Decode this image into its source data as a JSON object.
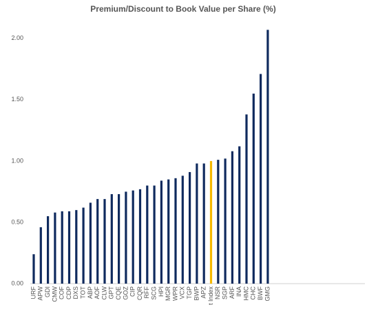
{
  "chart_data": {
    "type": "bar",
    "title": "Premium/Discount to Book Value per Share (%)",
    "categories": [
      "URF",
      "APW",
      "GDI",
      "CMW",
      "COF",
      "CDP",
      "DXS",
      "TOT",
      "ABP",
      "AOF",
      "CLW",
      "GPT",
      "CQE",
      "GOZ",
      "CIP",
      "CQR",
      "RFF",
      "SCG",
      "HPI",
      "MGR",
      "WPR",
      "VCX",
      "TGP",
      "BWP",
      "APZ",
      "t Index",
      "NSR",
      "SGP",
      "ARF",
      "INA",
      "HMC",
      "CHC",
      "BWF",
      "GMG"
    ],
    "values": [
      0.24,
      0.46,
      0.55,
      0.58,
      0.59,
      0.59,
      0.6,
      0.62,
      0.66,
      0.69,
      0.69,
      0.73,
      0.73,
      0.75,
      0.76,
      0.77,
      0.8,
      0.8,
      0.84,
      0.85,
      0.86,
      0.88,
      0.91,
      0.98,
      0.98,
      1.0,
      1.01,
      1.02,
      1.08,
      1.12,
      1.38,
      1.55,
      1.71,
      2.07
    ],
    "colors": [
      "#0f2a5e",
      "#0f2a5e",
      "#0f2a5e",
      "#0f2a5e",
      "#0f2a5e",
      "#0f2a5e",
      "#0f2a5e",
      "#0f2a5e",
      "#0f2a5e",
      "#0f2a5e",
      "#0f2a5e",
      "#0f2a5e",
      "#0f2a5e",
      "#0f2a5e",
      "#0f2a5e",
      "#0f2a5e",
      "#0f2a5e",
      "#0f2a5e",
      "#0f2a5e",
      "#0f2a5e",
      "#0f2a5e",
      "#0f2a5e",
      "#0f2a5e",
      "#0f2a5e",
      "#0f2a5e",
      "#f5b800",
      "#0f2a5e",
      "#0f2a5e",
      "#0f2a5e",
      "#0f2a5e",
      "#0f2a5e",
      "#0f2a5e",
      "#0f2a5e",
      "#0f2a5e"
    ],
    "ylim": [
      0,
      2.1
    ],
    "yticks": [
      {
        "value": 0,
        "label": "0.00"
      },
      {
        "value": 0.5,
        "label": "0.50"
      },
      {
        "value": 1,
        "label": "1.00"
      },
      {
        "value": 1.5,
        "label": "1.50"
      },
      {
        "value": 2,
        "label": "2.00"
      }
    ],
    "grid": false
  }
}
